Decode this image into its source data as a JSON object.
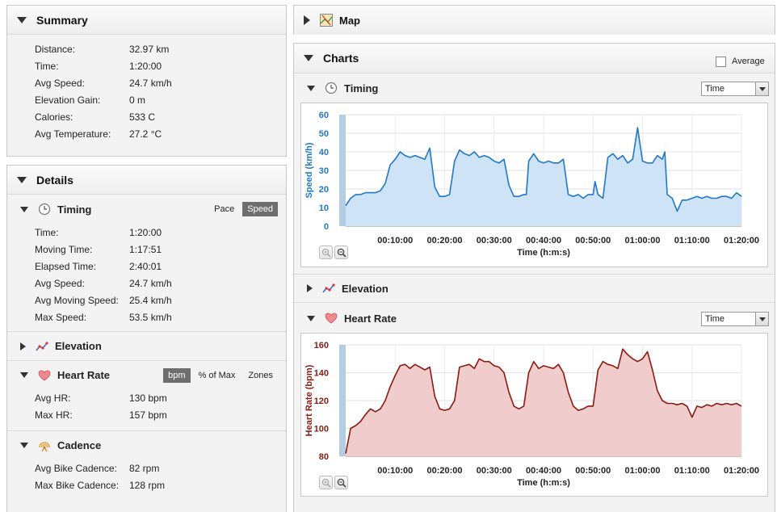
{
  "summary": {
    "title": "Summary",
    "rows": [
      {
        "label": "Distance:",
        "value": "32.97 km"
      },
      {
        "label": "Time:",
        "value": "1:20:00"
      },
      {
        "label": "Avg Speed:",
        "value": "24.7 km/h"
      },
      {
        "label": "Elevation Gain:",
        "value": "0 m"
      },
      {
        "label": "Calories:",
        "value": "533 C"
      },
      {
        "label": "Avg Temperature:",
        "value": "27.2 °C"
      }
    ]
  },
  "details": {
    "title": "Details",
    "timing": {
      "title": "Timing",
      "toggle": [
        "Pace",
        "Speed"
      ],
      "active": "Speed",
      "rows": [
        {
          "label": "Time:",
          "value": "1:20:00"
        },
        {
          "label": "Moving Time:",
          "value": "1:17:51"
        },
        {
          "label": "Elapsed Time:",
          "value": "2:40:01"
        },
        {
          "label": "Avg Speed:",
          "value": "24.7 km/h"
        },
        {
          "label": "Avg Moving Speed:",
          "value": "25.4 km/h"
        },
        {
          "label": "Max Speed:",
          "value": "53.5 km/h"
        }
      ]
    },
    "elevation": {
      "title": "Elevation"
    },
    "heart_rate": {
      "title": "Heart Rate",
      "toggle": [
        "bpm",
        "% of Max",
        "Zones"
      ],
      "active": "bpm",
      "rows": [
        {
          "label": "Avg HR:",
          "value": "130 bpm"
        },
        {
          "label": "Max HR:",
          "value": "157 bpm"
        }
      ]
    },
    "cadence": {
      "title": "Cadence",
      "rows": [
        {
          "label": "Avg Bike Cadence:",
          "value": "82 rpm"
        },
        {
          "label": "Max Bike Cadence:",
          "value": "128 rpm"
        }
      ]
    }
  },
  "map": {
    "title": "Map"
  },
  "charts": {
    "title": "Charts",
    "average_label": "Average",
    "timing": {
      "title": "Timing",
      "select_value": "Time"
    },
    "elevation": {
      "title": "Elevation"
    },
    "heart_rate": {
      "title": "Heart Rate",
      "select_value": "Time"
    }
  },
  "colors": {
    "speed": "#1f78c8",
    "speed_fill": "#cfe3f6",
    "hr": "#8b1a10",
    "hr_fill": "#f1cccc",
    "toggle_on": "#6e6e6e"
  },
  "chart_data": [
    {
      "type": "area",
      "title": "",
      "xlabel": "Time (h:m:s)",
      "ylabel": "Speed (km/h)",
      "ylim": [
        0,
        60
      ],
      "yticks": [
        0,
        10,
        20,
        30,
        40,
        50,
        60
      ],
      "xlim_min": [
        0,
        80
      ],
      "xticks": [
        "00:10:00",
        "00:20:00",
        "00:30:00",
        "00:40:00",
        "00:50:00",
        "01:00:00",
        "01:10:00",
        "01:20:00"
      ],
      "xtick_min": [
        10,
        20,
        30,
        40,
        50,
        60,
        70,
        80
      ],
      "grid": true,
      "series": [
        {
          "x_min": [
            0,
            1,
            2,
            3,
            4,
            5,
            6,
            7,
            8,
            9,
            10,
            11,
            12,
            13,
            14,
            15,
            16,
            17,
            18,
            19,
            19.6,
            20,
            21,
            22,
            23,
            24,
            25,
            26,
            27,
            28,
            29,
            30,
            31,
            32,
            33,
            34,
            35,
            36,
            36.5,
            37,
            38,
            39,
            40,
            41,
            42,
            43,
            44,
            45,
            46,
            47,
            48,
            49,
            50,
            50.4,
            51,
            52,
            53,
            54,
            55,
            56,
            57,
            58,
            59,
            60,
            61,
            62,
            63,
            64,
            64.5,
            65,
            66,
            67,
            68,
            69,
            70,
            71,
            72,
            73,
            74,
            75,
            76,
            77,
            78,
            79,
            80
          ],
          "y": [
            11,
            15,
            17,
            17,
            18,
            18,
            18,
            19,
            23,
            33,
            36,
            40,
            38,
            37,
            38,
            37,
            36,
            42,
            21,
            16,
            16,
            16,
            17,
            35,
            41,
            39,
            38,
            40,
            37,
            38,
            37,
            35,
            34,
            36,
            22,
            16,
            16,
            17,
            17,
            35,
            39,
            35,
            34,
            35,
            34,
            34,
            36,
            17,
            16,
            17,
            15,
            17,
            17,
            24,
            17,
            15,
            37,
            39,
            36,
            38,
            34,
            36,
            53,
            35,
            34,
            34,
            38,
            36,
            40,
            17,
            15,
            8,
            14,
            14,
            15,
            16,
            15,
            16,
            15,
            15,
            16,
            16,
            15,
            18,
            16
          ]
        }
      ]
    },
    {
      "type": "area",
      "title": "",
      "xlabel": "Time (h:m:s)",
      "ylabel": "Heart Rate (bpm)",
      "ylim": [
        80,
        160
      ],
      "yticks": [
        80,
        100,
        120,
        140,
        160
      ],
      "xlim_min": [
        0,
        80
      ],
      "xticks": [
        "00:10:00",
        "00:20:00",
        "00:30:00",
        "00:40:00",
        "00:50:00",
        "01:00:00",
        "01:10:00",
        "01:20:00"
      ],
      "xtick_min": [
        10,
        20,
        30,
        40,
        50,
        60,
        70,
        80
      ],
      "grid": true,
      "series": [
        {
          "x_min": [
            0,
            1,
            2,
            3,
            4,
            5,
            6,
            7,
            8,
            9,
            10,
            11,
            12,
            13,
            14,
            15,
            16,
            17,
            18,
            19,
            20,
            21,
            22,
            23,
            24,
            25,
            26,
            27,
            28,
            29,
            30,
            31,
            32,
            33,
            34,
            35,
            36,
            37,
            38,
            39,
            40,
            41,
            42,
            43,
            44,
            45,
            46,
            47,
            48,
            49,
            50,
            51,
            52,
            53,
            54,
            55,
            56,
            57,
            58,
            59,
            60,
            61,
            62,
            63,
            64,
            65,
            66,
            67,
            68,
            69,
            70,
            71,
            72,
            73,
            74,
            75,
            76,
            77,
            78,
            79,
            80
          ],
          "y": [
            82,
            100,
            102,
            105,
            110,
            114,
            112,
            114,
            120,
            130,
            138,
            145,
            146,
            143,
            146,
            144,
            142,
            144,
            123,
            114,
            113,
            114,
            120,
            144,
            145,
            146,
            143,
            150,
            148,
            148,
            145,
            144,
            140,
            126,
            116,
            114,
            116,
            140,
            148,
            143,
            145,
            144,
            143,
            146,
            140,
            126,
            116,
            113,
            114,
            116,
            116,
            142,
            148,
            146,
            145,
            143,
            157,
            153,
            150,
            148,
            150,
            155,
            142,
            127,
            120,
            118,
            118,
            117,
            118,
            116,
            108,
            116,
            115,
            117,
            116,
            118,
            117,
            118,
            117,
            118,
            116
          ]
        }
      ]
    }
  ]
}
